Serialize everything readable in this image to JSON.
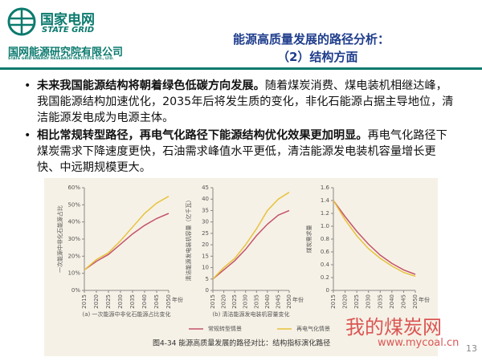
{
  "header": {
    "logo_cn": "国家电网",
    "logo_en": "STATE GRID",
    "org_cn": "国网能源研究院有限公司",
    "org_en": "STATE GRID ENERGY RESEARCH INSTITUTE CO., LTD.",
    "title_1": "能源高质量发展的路径分析：",
    "title_2": "（2）结构方面"
  },
  "bullets": [
    {
      "bold": "未来我国能源结构将朝着绿色低碳方向发展。",
      "text": "随着煤炭消费、煤电装机相继达峰，我国能源结构加速优化，2035年后将发生质的变化，非化石能源占据主导地位，清洁能源发电成为电源主体。"
    },
    {
      "bold": "相比常规转型路径，再电气化路径下能源结构优化效果更加明显。",
      "text": "再电气化路径下煤炭需求下降速度更快，石油需求峰值水平更低，清洁能源发电装机容量增长更快、中远期规模更大。"
    }
  ],
  "chart_data": [
    {
      "type": "line",
      "y_label": "一次能源中非化石能源占比",
      "x_label": "年份",
      "caption": "(a) 一次能源中非化石能源占比变化",
      "x": [
        2015,
        2020,
        2025,
        2030,
        2035,
        2040,
        2045,
        2050
      ],
      "xlim": [
        2015,
        2050
      ],
      "xticks": [
        2015,
        2020,
        2025,
        2030,
        2035,
        2040,
        2045,
        2050
      ],
      "ylim": [
        0,
        60
      ],
      "yticks": [
        {
          "value": 0,
          "label": "0%"
        },
        {
          "value": 10,
          "label": "10%"
        },
        {
          "value": 20,
          "label": "20%"
        },
        {
          "value": 30,
          "label": "30%"
        },
        {
          "value": 40,
          "label": "40%"
        },
        {
          "value": 50,
          "label": "50%"
        },
        {
          "value": 60,
          "label": "60%"
        }
      ],
      "series": [
        {
          "name": "常规转型情景",
          "color": "#c4546c",
          "values": [
            12,
            17,
            21,
            27,
            33,
            38,
            42,
            45
          ]
        },
        {
          "name": "再电气化情景",
          "color": "#e6c33c",
          "values": [
            12,
            18,
            22,
            29,
            37,
            45,
            51,
            55
          ]
        }
      ]
    },
    {
      "type": "line",
      "y_label": "清洁能源发电装机容量（亿千瓦）",
      "x_label": "年份",
      "caption": "(b) 清洁能源发电装机容量变化",
      "x": [
        2015,
        2020,
        2025,
        2030,
        2035,
        2040,
        2045,
        2050
      ],
      "xlim": [
        2015,
        2050
      ],
      "xticks": [
        2015,
        2020,
        2025,
        2030,
        2035,
        2040,
        2045,
        2050
      ],
      "ylim": [
        0,
        45
      ],
      "yticks": [
        0,
        5,
        10,
        15,
        20,
        25,
        30,
        35,
        40,
        45
      ],
      "series": [
        {
          "name": "常规转型情景",
          "color": "#c4546c",
          "values": [
            5,
            9,
            13,
            18,
            24,
            29,
            33,
            35
          ]
        },
        {
          "name": "再电气化情景",
          "color": "#e6c33c",
          "values": [
            5,
            10,
            14,
            20,
            27,
            35,
            40,
            43
          ]
        }
      ]
    },
    {
      "type": "line",
      "y_label": "煤炭需求量",
      "x_label": "年份",
      "x": [
        2015,
        2020,
        2025,
        2030,
        2035,
        2040,
        2045,
        2050
      ],
      "xlim": [
        2015,
        2050
      ],
      "xticks": [
        2015,
        2020,
        2025,
        2030,
        2035,
        2040,
        2045,
        2050
      ],
      "ylim": [
        0,
        1.6
      ],
      "yticks": [
        0,
        0.2,
        0.4,
        0.6,
        0.8,
        {
          "value": 1,
          "label": "1.0"
        },
        1.2,
        1.4,
        1.6
      ],
      "series": [
        {
          "name": "常规转型情景",
          "color": "#c4546c",
          "values": [
            1.4,
            1.15,
            0.92,
            0.72,
            0.55,
            0.42,
            0.32,
            0.25
          ]
        },
        {
          "name": "再电气化情景",
          "color": "#e6c33c",
          "values": [
            1.4,
            1.1,
            0.85,
            0.65,
            0.5,
            0.38,
            0.28,
            0.22
          ]
        }
      ]
    }
  ],
  "figure_caption": "图4-34 能源高质量发展的路径对比：结构指标演化路径",
  "watermark": {
    "name": "我的煤炭网",
    "url": "www.mycoal.cn"
  },
  "page_number": "13"
}
